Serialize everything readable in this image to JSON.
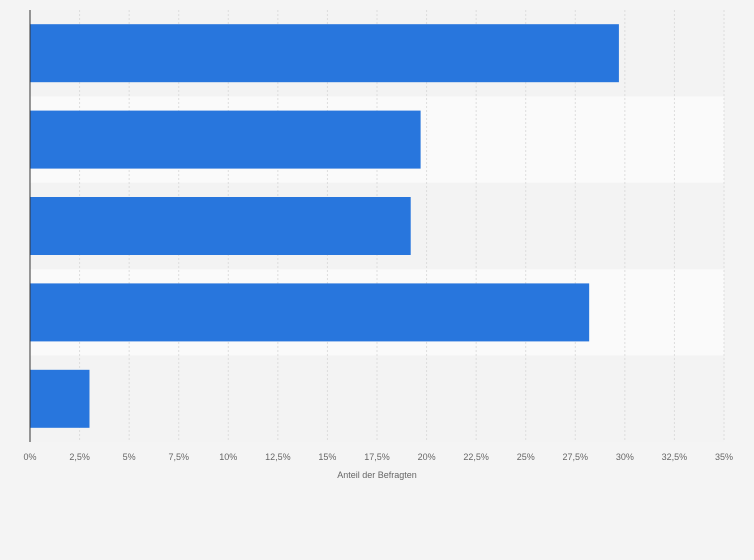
{
  "chart_data": {
    "type": "bar",
    "orientation": "horizontal",
    "categories": [
      "",
      "",
      "",
      "",
      ""
    ],
    "values": [
      29.7,
      19.7,
      19.2,
      28.2,
      3.0
    ],
    "xlabel": "Anteil der Befragten",
    "ylabel": "",
    "xlim": [
      0,
      35
    ],
    "xticks": [
      0,
      2.5,
      5,
      7.5,
      10,
      12.5,
      15,
      17.5,
      20,
      22.5,
      25,
      27.5,
      30,
      32.5,
      35
    ],
    "xtick_labels": [
      "0%",
      "2,5%",
      "5%",
      "7,5%",
      "10%",
      "12,5%",
      "15%",
      "17,5%",
      "20%",
      "22,5%",
      "25%",
      "27,5%",
      "30%",
      "32,5%",
      "35%"
    ],
    "grid": true,
    "bar_color": "#2876dd",
    "band_colors": [
      "#f3f3f3",
      "#fafafa"
    ]
  }
}
